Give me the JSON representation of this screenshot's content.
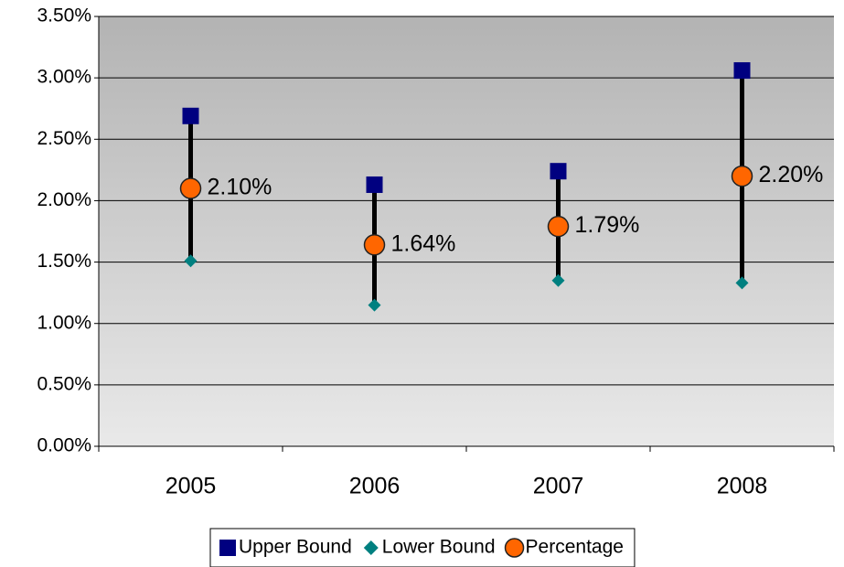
{
  "chart_data": {
    "type": "range-dot",
    "categories": [
      "2005",
      "2006",
      "2007",
      "2008"
    ],
    "series": [
      {
        "name": "Upper Bound",
        "color": "#000080",
        "marker": "square",
        "values": [
          2.69,
          2.13,
          2.24,
          3.06
        ]
      },
      {
        "name": "Lower Bound",
        "color": "#008080",
        "marker": "diamond",
        "values": [
          1.51,
          1.15,
          1.35,
          1.33
        ]
      },
      {
        "name": "Percentage",
        "color": "#ff6600",
        "marker": "circle",
        "values": [
          2.1,
          1.64,
          1.79,
          2.2
        ],
        "value_labels": [
          "2.10%",
          "1.64%",
          "1.79%",
          "2.20%"
        ]
      }
    ],
    "range_line_color": "#000000",
    "ylim": [
      0,
      3.5
    ],
    "yticks": [
      {
        "value": 0,
        "label": "0.00%"
      },
      {
        "value": 0.5,
        "label": "0.50%"
      },
      {
        "value": 1,
        "label": "1.00%"
      },
      {
        "value": 1.5,
        "label": "1.50%"
      },
      {
        "value": 2,
        "label": "2.00%"
      },
      {
        "value": 2.5,
        "label": "2.50%"
      },
      {
        "value": 3,
        "label": "3.00%"
      },
      {
        "value": 3.5,
        "label": "3.50%"
      }
    ],
    "grid": true,
    "legend": "bottom"
  }
}
